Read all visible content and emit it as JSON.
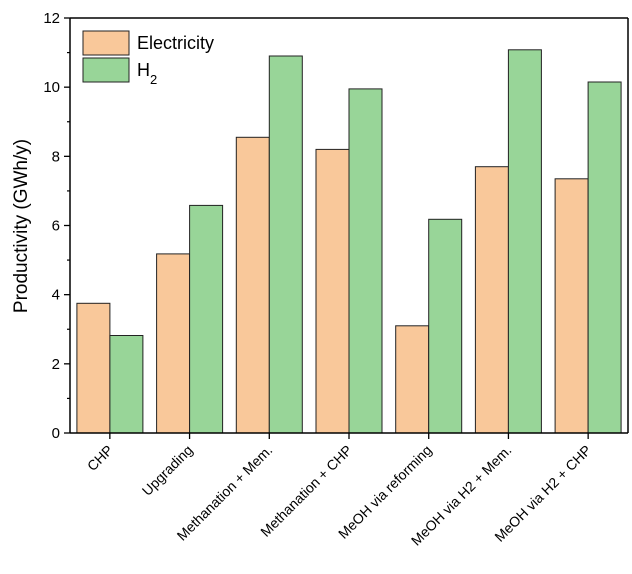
{
  "chart_data": {
    "type": "bar",
    "title": "",
    "xlabel": "",
    "ylabel": "Productivity (GWh/y)",
    "ylim": [
      0,
      12
    ],
    "yticks": [
      0,
      2,
      4,
      6,
      8,
      10,
      12
    ],
    "grid": false,
    "legend_position": "top-left",
    "categories": [
      "CHP",
      "Upgrading",
      "Methanation + Mem.",
      "Methanation + CHP",
      "MeOH via reforming",
      "MeOH via H2 + Mem.",
      "MeOH via H2 + CHP"
    ],
    "series": [
      {
        "name": "Electricity",
        "color": "#F9C89A",
        "values": [
          3.75,
          5.18,
          8.55,
          8.2,
          3.1,
          7.7,
          7.35
        ]
      },
      {
        "name": "H",
        "name_subscript": "2",
        "color": "#98D598",
        "values": [
          2.82,
          6.58,
          10.9,
          9.95,
          6.18,
          11.08,
          10.15
        ]
      }
    ]
  }
}
